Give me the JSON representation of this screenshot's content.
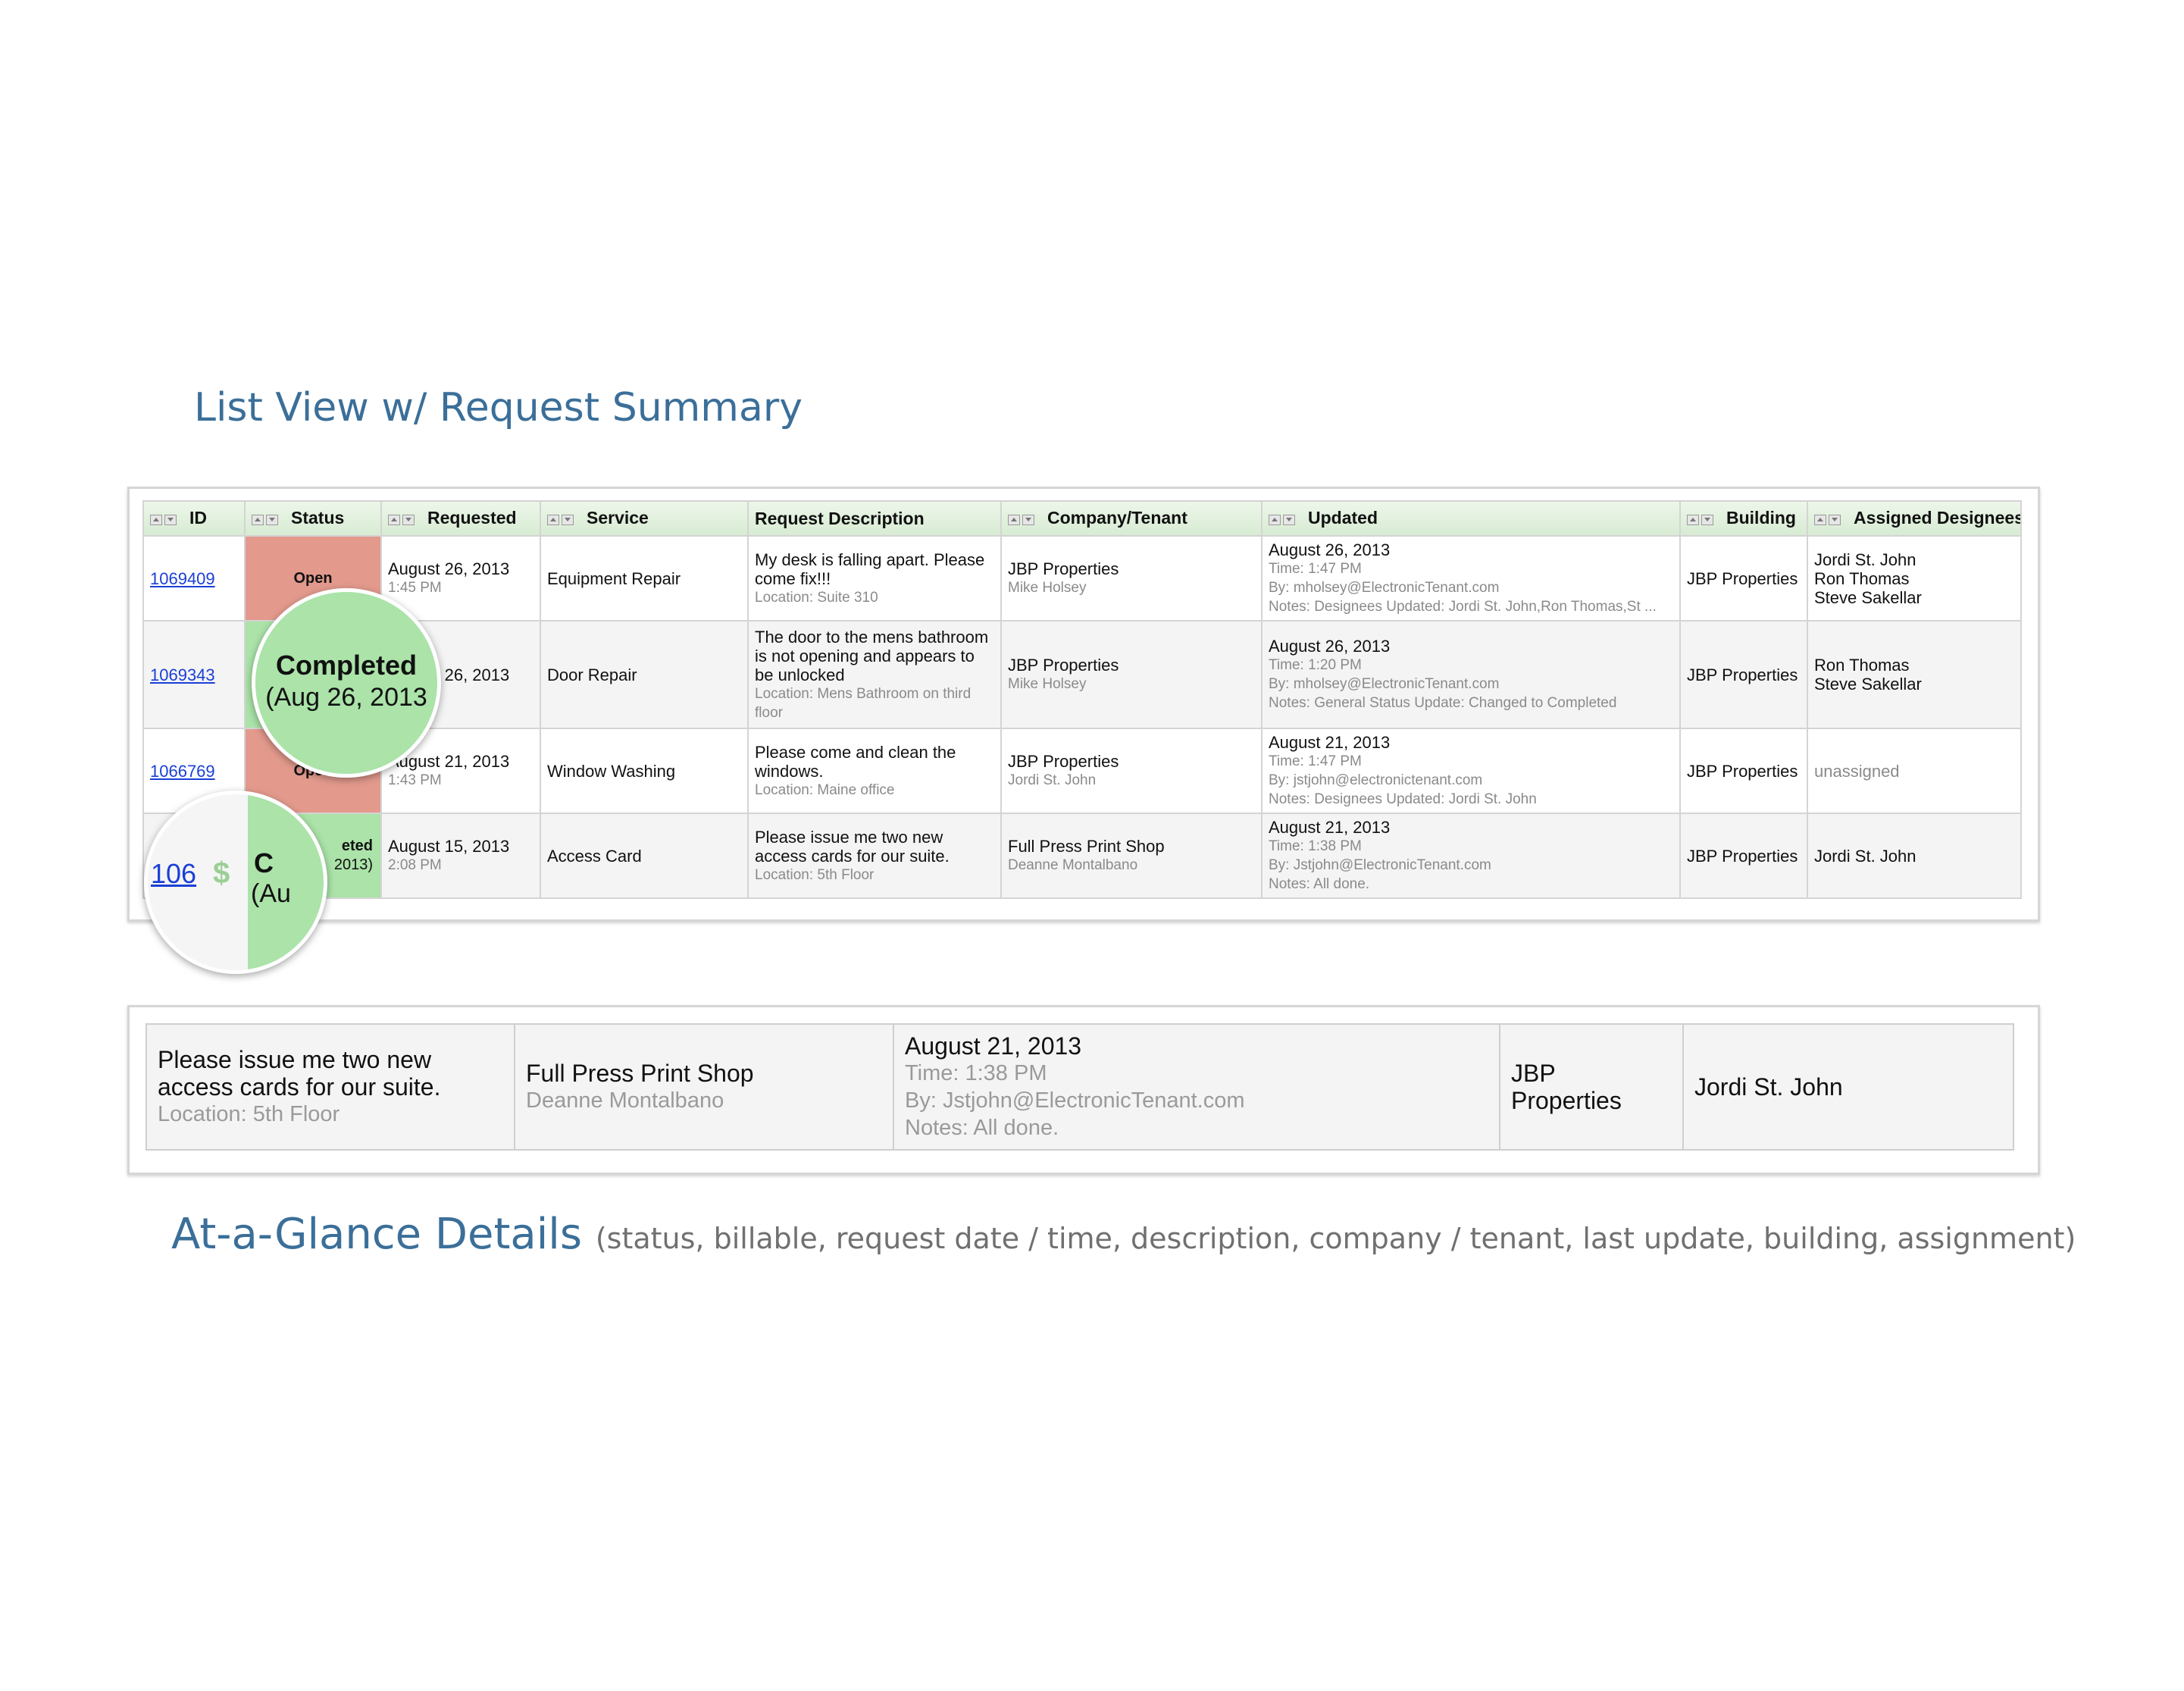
{
  "headings": {
    "list_title": "List View w/ Request Summary",
    "glance_title": "At-a-Glance Details",
    "glance_subtitle": "(status, billable, request date / time, description, company / tenant, last update, building, assignment)"
  },
  "table": {
    "columns": [
      "ID",
      "Status",
      "Requested",
      "Service",
      "Request Description",
      "Company/Tenant",
      "Updated",
      "Building",
      "Assigned Designees"
    ],
    "rows": [
      {
        "id": "1069409",
        "status": "Open",
        "requested_date": "August 26, 2013",
        "requested_time": "1:45 PM",
        "service": "Equipment Repair",
        "description": "My desk is falling apart. Please come fix!!!",
        "location": "Location: Suite 310",
        "company": "JBP Properties",
        "tenant": "Mike Holsey",
        "updated_date": "August 26, 2013",
        "updated_time": "Time: 1:47 PM",
        "updated_by": "By: mholsey@ElectronicTenant.com",
        "updated_notes": "Notes: Designees Updated: Jordi St. John,Ron Thomas,St ...",
        "building": "JBP Properties",
        "designees": [
          "Jordi St. John",
          "Ron Thomas",
          "Steve Sakellar"
        ]
      },
      {
        "id": "1069343",
        "status": "Completed",
        "requested_date": "August 26, 2013",
        "requested_time": "",
        "service": "Door Repair",
        "description": "The door to the mens bathroom is not opening and appears to be unlocked",
        "location": "Location: Mens Bathroom on third floor",
        "company": "JBP Properties",
        "tenant": "Mike Holsey",
        "updated_date": "August 26, 2013",
        "updated_time": "Time: 1:20 PM",
        "updated_by": "By: mholsey@ElectronicTenant.com",
        "updated_notes": "Notes: General Status Update: Changed to Completed",
        "building": "JBP Properties",
        "designees": [
          "Ron Thomas",
          "Steve Sakellar"
        ]
      },
      {
        "id": "1066769",
        "status": "Open",
        "requested_date": "August 21, 2013",
        "requested_time": "1:43 PM",
        "service": "Window Washing",
        "description": "Please come and clean the windows.",
        "location": "Location: Maine office",
        "company": "JBP Properties",
        "tenant": "Jordi St. John",
        "updated_date": "August 21, 2013",
        "updated_time": "Time: 1:47 PM",
        "updated_by": "By: jstjohn@electronictenant.com",
        "updated_notes": "Notes: Designees Updated: Jordi St. John",
        "building": "JBP Properties",
        "designees": [
          "unassigned"
        ]
      },
      {
        "id": "106",
        "status": "eted",
        "status_date": "2013)",
        "requested_date": "August 15, 2013",
        "requested_time": "2:08 PM",
        "service": "Access Card",
        "description": "Please issue me two new access cards for our suite.",
        "location": "Location: 5th Floor",
        "company": "Full Press Print Shop",
        "tenant": "Deanne Montalbano",
        "updated_date": "August 21, 2013",
        "updated_time": "Time: 1:38 PM",
        "updated_by": "By: Jstjohn@ElectronicTenant.com",
        "updated_notes": "Notes: All done.",
        "building": "JBP Properties",
        "designees": [
          "Jordi St. John"
        ]
      }
    ]
  },
  "magnifier_status": {
    "label": "Completed",
    "date": "(Aug 26, 2013"
  },
  "magnifier_id": {
    "id": "106",
    "billable_symbol": "$",
    "status_fragment": "C",
    "date_fragment": "(Au"
  },
  "glance": {
    "description": "Please issue me two new access cards for our suite.",
    "location": "Location: 5th Floor",
    "company": "Full Press Print Shop",
    "tenant": "Deanne Montalbano",
    "updated_date": "August 21, 2013",
    "updated_time": "Time: 1:38 PM",
    "updated_by": "By: Jstjohn@ElectronicTenant.com",
    "updated_notes": "Notes: All done.",
    "building": "JBP Properties",
    "designee": "Jordi St. John"
  }
}
